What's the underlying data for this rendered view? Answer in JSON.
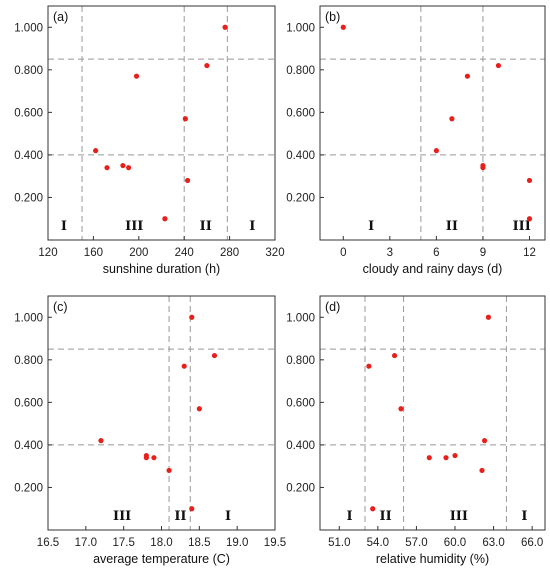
{
  "colors": {
    "point": "#e8201c",
    "reference_line": "#999999",
    "frame": "#333333"
  },
  "chart_data": [
    {
      "type": "scatter",
      "panel_label": "(a)",
      "xlabel": "sunshine duration (h)",
      "ylabel": "",
      "xlim": [
        120,
        320
      ],
      "ylim": [
        0,
        1.1
      ],
      "xticks": [
        120,
        160,
        200,
        240,
        280,
        320
      ],
      "xtick_labels": [
        "120",
        "160",
        "200",
        "240",
        "280",
        "320"
      ],
      "yticks": [
        0.2,
        0.4,
        0.6,
        0.8,
        1.0
      ],
      "ytick_labels": [
        "0.200",
        "0.400",
        "0.600",
        "0.800",
        "1.000"
      ],
      "hlines": [
        0.4,
        0.85
      ],
      "vlines": [
        150,
        240,
        278
      ],
      "zones": [
        {
          "label": "I",
          "x": 134
        },
        {
          "label": "III",
          "x": 196
        },
        {
          "label": "II",
          "x": 259
        },
        {
          "label": "I",
          "x": 300
        }
      ],
      "zone_y": 0.07,
      "points": [
        {
          "x": 276,
          "y": 1.0
        },
        {
          "x": 260,
          "y": 0.82
        },
        {
          "x": 198,
          "y": 0.77
        },
        {
          "x": 241,
          "y": 0.57
        },
        {
          "x": 162,
          "y": 0.42
        },
        {
          "x": 172,
          "y": 0.34
        },
        {
          "x": 186,
          "y": 0.35
        },
        {
          "x": 191,
          "y": 0.34
        },
        {
          "x": 243,
          "y": 0.28
        },
        {
          "x": 223,
          "y": 0.1
        }
      ]
    },
    {
      "type": "scatter",
      "panel_label": "(b)",
      "xlabel": "cloudy and rainy days (d)",
      "ylabel": "",
      "xlim": [
        -1.5,
        13
      ],
      "ylim": [
        0,
        1.1
      ],
      "xticks": [
        0,
        3,
        6,
        9,
        12
      ],
      "xtick_labels": [
        "0",
        "3",
        "6",
        "9",
        "12"
      ],
      "yticks": [
        0.2,
        0.4,
        0.6,
        0.8,
        1.0
      ],
      "ytick_labels": [
        "0.200",
        "0.400",
        "0.600",
        "0.800",
        "1.000"
      ],
      "hlines": [
        0.4,
        0.85
      ],
      "vlines": [
        5,
        9
      ],
      "zones": [
        {
          "label": "I",
          "x": 1.8
        },
        {
          "label": "II",
          "x": 7.0
        },
        {
          "label": "III",
          "x": 11.5
        }
      ],
      "zone_y": 0.07,
      "points": [
        {
          "x": 0,
          "y": 1.0
        },
        {
          "x": 10,
          "y": 0.82
        },
        {
          "x": 8,
          "y": 0.77
        },
        {
          "x": 7,
          "y": 0.57
        },
        {
          "x": 6,
          "y": 0.42
        },
        {
          "x": 9,
          "y": 0.35
        },
        {
          "x": 9,
          "y": 0.34
        },
        {
          "x": 12,
          "y": 0.28
        },
        {
          "x": 12,
          "y": 0.1
        }
      ]
    },
    {
      "type": "scatter",
      "panel_label": "(c)",
      "xlabel": "average temperature (C)",
      "ylabel": "",
      "xlim": [
        16.5,
        19.5
      ],
      "ylim": [
        0,
        1.1
      ],
      "xticks": [
        16.5,
        17.0,
        17.5,
        18.0,
        18.5,
        19.0,
        19.5
      ],
      "xtick_labels": [
        "16.5",
        "17.0",
        "17.5",
        "18.0",
        "18.5",
        "19.0",
        "19.5"
      ],
      "yticks": [
        0.2,
        0.4,
        0.6,
        0.8,
        1.0
      ],
      "ytick_labels": [
        "0.200",
        "0.400",
        "0.600",
        "0.800",
        "1.000"
      ],
      "hlines": [
        0.4,
        0.85
      ],
      "vlines": [
        18.1,
        18.38
      ],
      "zones": [
        {
          "label": "III",
          "x": 17.48
        },
        {
          "label": "II",
          "x": 18.25
        },
        {
          "label": "I",
          "x": 18.88
        }
      ],
      "zone_y": 0.07,
      "points": [
        {
          "x": 18.4,
          "y": 1.0
        },
        {
          "x": 18.7,
          "y": 0.82
        },
        {
          "x": 18.3,
          "y": 0.77
        },
        {
          "x": 18.5,
          "y": 0.57
        },
        {
          "x": 17.2,
          "y": 0.42
        },
        {
          "x": 17.8,
          "y": 0.35
        },
        {
          "x": 17.8,
          "y": 0.34
        },
        {
          "x": 17.9,
          "y": 0.34
        },
        {
          "x": 18.1,
          "y": 0.28
        },
        {
          "x": 18.4,
          "y": 0.1
        }
      ]
    },
    {
      "type": "scatter",
      "panel_label": "(d)",
      "xlabel": "relative humidity (%)",
      "ylabel": "",
      "xlim": [
        49.5,
        67
      ],
      "ylim": [
        0,
        1.1
      ],
      "xticks": [
        51.0,
        54.0,
        57.0,
        60.0,
        63.0,
        66.0
      ],
      "xtick_labels": [
        "51.0",
        "54.0",
        "57.0",
        "60.0",
        "63.0",
        "66.0"
      ],
      "yticks": [
        0.2,
        0.4,
        0.6,
        0.8,
        1.0
      ],
      "ytick_labels": [
        "0.200",
        "0.400",
        "0.600",
        "0.800",
        "1.000"
      ],
      "hlines": [
        0.4,
        0.85
      ],
      "vlines": [
        53.0,
        56.0,
        64.0
      ],
      "zones": [
        {
          "label": "I",
          "x": 51.8
        },
        {
          "label": "II",
          "x": 54.6
        },
        {
          "label": "III",
          "x": 60.3
        },
        {
          "label": "I",
          "x": 65.4
        }
      ],
      "zone_y": 0.07,
      "points": [
        {
          "x": 62.6,
          "y": 1.0
        },
        {
          "x": 55.3,
          "y": 0.82
        },
        {
          "x": 53.3,
          "y": 0.77
        },
        {
          "x": 55.8,
          "y": 0.57
        },
        {
          "x": 62.3,
          "y": 0.42
        },
        {
          "x": 58.0,
          "y": 0.34
        },
        {
          "x": 59.3,
          "y": 0.34
        },
        {
          "x": 60.0,
          "y": 0.35
        },
        {
          "x": 62.1,
          "y": 0.28
        },
        {
          "x": 53.6,
          "y": 0.1
        }
      ]
    }
  ]
}
